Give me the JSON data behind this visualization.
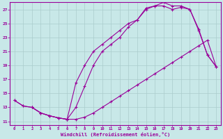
{
  "xlabel": "Windchill (Refroidissement éolien,°C)",
  "xlim": [
    -0.5,
    23.5
  ],
  "ylim": [
    10.5,
    28.0
  ],
  "xticks": [
    0,
    1,
    2,
    3,
    4,
    5,
    6,
    7,
    8,
    9,
    10,
    11,
    12,
    13,
    14,
    15,
    16,
    17,
    18,
    19,
    20,
    21,
    22,
    23
  ],
  "yticks": [
    11,
    13,
    15,
    17,
    19,
    21,
    23,
    25,
    27
  ],
  "bg_color": "#c8e8e8",
  "line_color": "#990099",
  "grid_color": "#aacccc",
  "curve1_x": [
    0,
    1,
    2,
    3,
    4,
    5,
    6,
    7,
    8,
    9,
    10,
    11,
    12,
    13,
    14,
    15,
    16,
    17,
    18,
    19,
    20,
    21,
    22,
    23
  ],
  "curve1_y": [
    14.0,
    13.2,
    13.0,
    12.2,
    11.8,
    11.5,
    11.3,
    11.3,
    11.6,
    12.2,
    13.0,
    13.8,
    14.6,
    15.4,
    16.2,
    17.0,
    17.8,
    18.6,
    19.4,
    20.2,
    21.0,
    21.8,
    22.6,
    18.8
  ],
  "curve2_x": [
    2,
    3,
    4,
    5,
    6,
    7,
    8,
    9,
    10,
    11,
    12,
    13,
    14,
    15,
    16,
    17,
    18,
    19,
    20,
    21,
    22,
    23
  ],
  "curve2_y": [
    13.0,
    12.2,
    11.8,
    11.5,
    11.3,
    16.5,
    19.0,
    21.0,
    22.0,
    23.0,
    24.0,
    25.0,
    25.5,
    27.2,
    27.5,
    28.0,
    27.5,
    27.5,
    27.0,
    24.0,
    20.5,
    18.8
  ],
  "curve3_x": [
    0,
    1,
    2,
    3,
    4,
    5,
    6,
    7,
    8,
    9,
    10,
    11,
    12,
    13,
    14,
    15,
    16,
    17,
    18,
    19,
    20,
    21,
    22,
    23
  ],
  "curve3_y": [
    14.0,
    13.2,
    13.0,
    12.2,
    11.8,
    11.5,
    11.3,
    13.0,
    16.0,
    19.0,
    21.0,
    22.0,
    23.0,
    24.5,
    25.5,
    27.0,
    27.5,
    27.5,
    27.0,
    27.3,
    27.0,
    24.2,
    20.5,
    18.8
  ]
}
